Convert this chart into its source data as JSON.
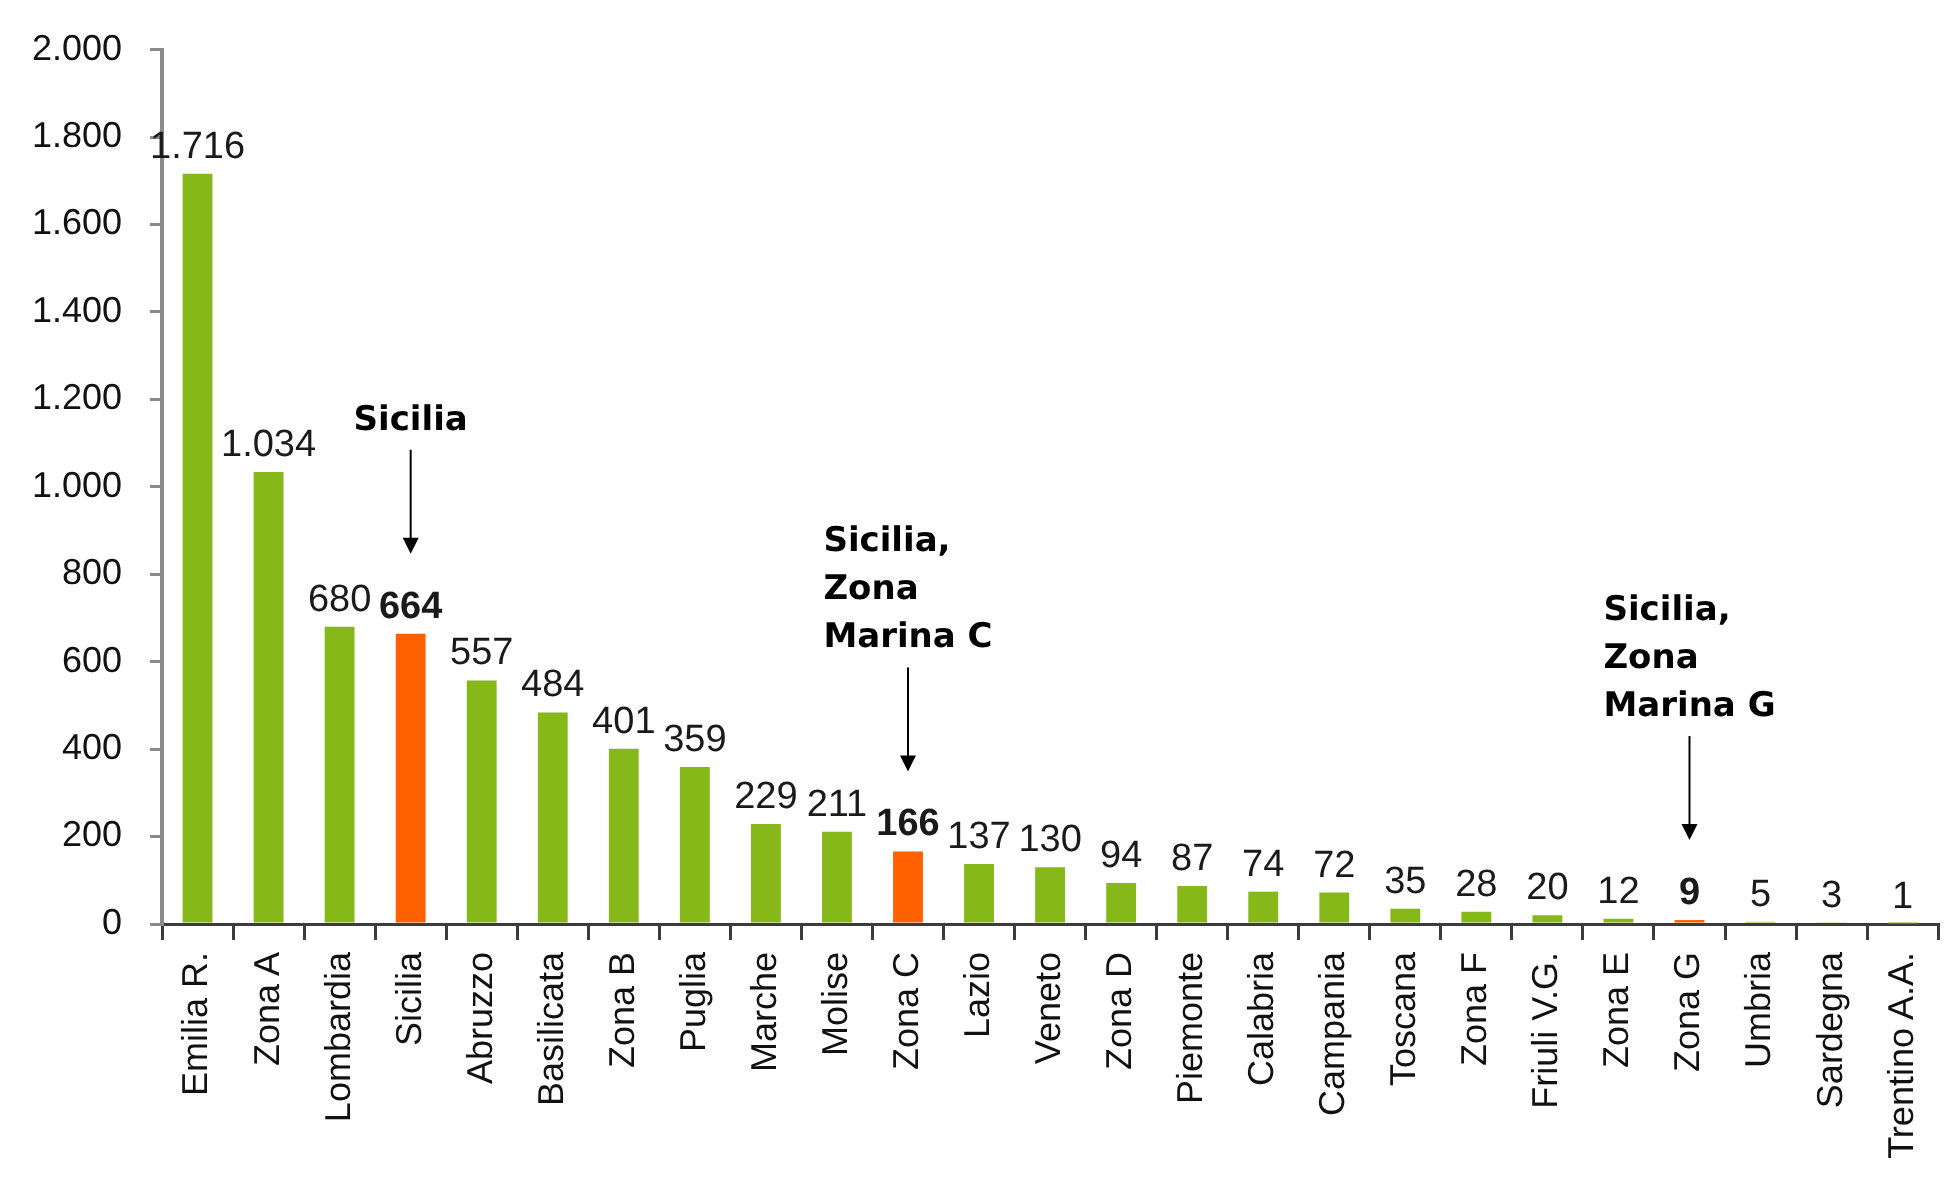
{
  "chart_data": {
    "type": "bar",
    "categories": [
      "Emilia R.",
      "Zona A",
      "Lombardia",
      "Sicilia",
      "Abruzzo",
      "Basilicata",
      "Zona B",
      "Puglia",
      "Marche",
      "Molise",
      "Zona C",
      "Lazio",
      "Veneto",
      "Zona D",
      "Piemonte",
      "Calabria",
      "Campania",
      "Toscana",
      "Zona F",
      "Friuli V.G.",
      "Zona E",
      "Zona G",
      "Umbria",
      "Sardegna",
      "Trentino A.A."
    ],
    "values": [
      1716,
      1034,
      680,
      664,
      557,
      484,
      401,
      359,
      229,
      211,
      166,
      137,
      130,
      94,
      87,
      74,
      72,
      35,
      28,
      20,
      12,
      9,
      5,
      3,
      1
    ],
    "value_labels": [
      "1.716",
      "1.034",
      "680",
      "664",
      "557",
      "484",
      "401",
      "359",
      "229",
      "211",
      "166",
      "137",
      "130",
      "94",
      "87",
      "74",
      "72",
      "35",
      "28",
      "20",
      "12",
      "9",
      "5",
      "3",
      "1"
    ],
    "colors": [
      "#85b818",
      "#85b818",
      "#85b818",
      "#ff6000",
      "#85b818",
      "#85b818",
      "#85b818",
      "#85b818",
      "#85b818",
      "#85b818",
      "#ff6000",
      "#85b818",
      "#85b818",
      "#85b818",
      "#85b818",
      "#85b818",
      "#85b818",
      "#85b818",
      "#85b818",
      "#85b818",
      "#85b818",
      "#ff6000",
      "#85b818",
      "#85b818",
      "#85b818"
    ],
    "ylim": [
      0,
      2000
    ],
    "yticks": [
      0,
      200,
      400,
      600,
      800,
      {
        "value": 1000,
        "label": "1.000"
      },
      {
        "value": 1200,
        "label": "1.200"
      },
      {
        "value": 1400,
        "label": "1.400"
      },
      {
        "value": 1600,
        "label": "1.600"
      },
      {
        "value": 1800,
        "label": "1.800"
      },
      {
        "value": 2000,
        "label": "2.000"
      }
    ],
    "annotations": [
      "Sicilia",
      "Sicilia, Zona Marina C",
      "Sicilia, Zona Marina G"
    ]
  }
}
